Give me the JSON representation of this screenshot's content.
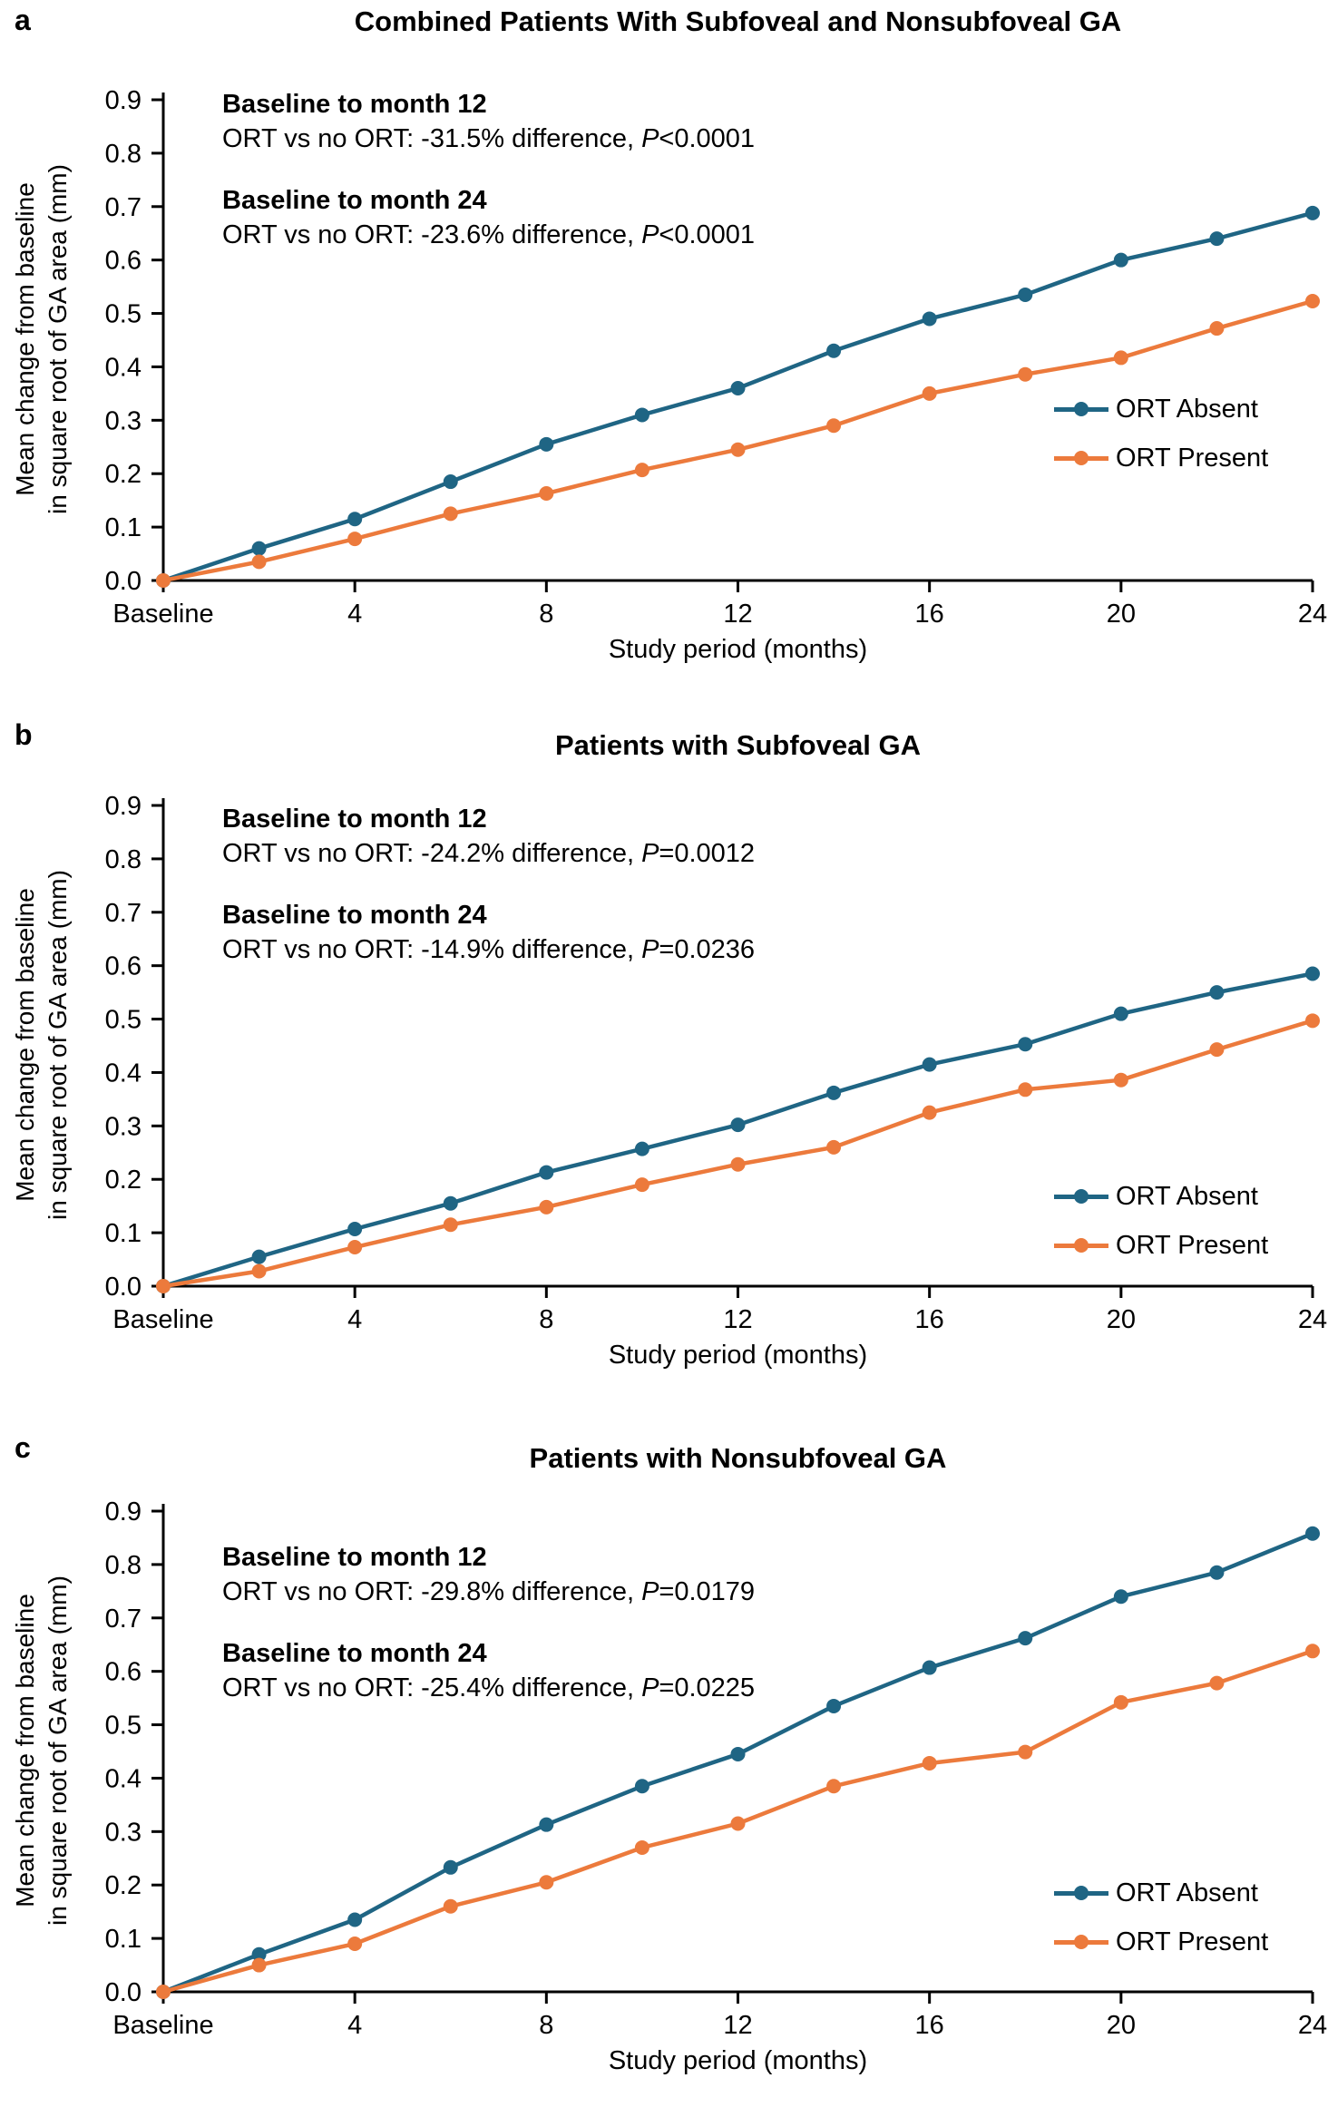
{
  "figure": {
    "ylabel_line1": "Mean change from baseline",
    "ylabel_line2": "in square root of GA area (mm)",
    "xlabel": "Study period (months)",
    "legend": {
      "absent": "ORT Absent",
      "present": "ORT Present"
    },
    "colors": {
      "absent": "#1f6584",
      "present": "#ec7a3c",
      "axis": "#000000",
      "background": "#ffffff"
    }
  },
  "chart_data": [
    {
      "type": "line",
      "panel_letter": "a",
      "title": "Combined Patients With Subfoveal and Nonsubfoveal GA",
      "xlabel": "Study period (months)",
      "ylabel": "Mean change from baseline in square root of GA area (mm)",
      "xlim": [
        0,
        24
      ],
      "ylim": [
        0,
        0.9
      ],
      "grid": false,
      "legend_position": "right-middle",
      "x": [
        0,
        2,
        4,
        6,
        8,
        10,
        12,
        14,
        16,
        18,
        20,
        22,
        24
      ],
      "xticks": [
        {
          "value": 0,
          "label": "Baseline"
        },
        {
          "value": 4,
          "label": "4"
        },
        {
          "value": 8,
          "label": "8"
        },
        {
          "value": 12,
          "label": "12"
        },
        {
          "value": 16,
          "label": "16"
        },
        {
          "value": 20,
          "label": "20"
        },
        {
          "value": 24,
          "label": "24"
        }
      ],
      "yticks": [
        {
          "value": 0.0,
          "label": "0.0"
        },
        {
          "value": 0.1,
          "label": "0.1"
        },
        {
          "value": 0.2,
          "label": "0.2"
        },
        {
          "value": 0.3,
          "label": "0.3"
        },
        {
          "value": 0.4,
          "label": "0.4"
        },
        {
          "value": 0.5,
          "label": "0.5"
        },
        {
          "value": 0.6,
          "label": "0.6"
        },
        {
          "value": 0.7,
          "label": "0.7"
        },
        {
          "value": 0.8,
          "label": "0.8"
        },
        {
          "value": 0.9,
          "label": "0.9"
        }
      ],
      "series": [
        {
          "name": "ORT Absent",
          "color_key": "absent",
          "values": [
            0,
            0.06,
            0.115,
            0.185,
            0.255,
            0.31,
            0.36,
            0.43,
            0.49,
            0.535,
            0.6,
            0.64,
            0.688
          ]
        },
        {
          "name": "ORT Present",
          "color_key": "present",
          "values": [
            0,
            0.035,
            0.078,
            0.125,
            0.163,
            0.207,
            0.245,
            0.29,
            0.35,
            0.386,
            0.417,
            0.472,
            0.523
          ]
        }
      ],
      "annotations": [
        {
          "heading": "Baseline to month 12",
          "body_prefix": "ORT vs no ORT: -31.5% difference, ",
          "p": "P",
          "p_rest": "<0.0001"
        },
        {
          "heading": "Baseline to month 24",
          "body_prefix": "ORT vs no ORT: -23.6% difference, ",
          "p": "P",
          "p_rest": "<0.0001"
        }
      ]
    },
    {
      "type": "line",
      "panel_letter": "b",
      "title": "Patients with Subfoveal GA",
      "xlabel": "Study period (months)",
      "ylabel": "Mean change from baseline in square root of GA area (mm)",
      "xlim": [
        0,
        24
      ],
      "ylim": [
        0,
        0.9
      ],
      "grid": false,
      "legend_position": "right-middle",
      "x": [
        0,
        2,
        4,
        6,
        8,
        10,
        12,
        14,
        16,
        18,
        20,
        22,
        24
      ],
      "xticks": [
        {
          "value": 0,
          "label": "Baseline"
        },
        {
          "value": 4,
          "label": "4"
        },
        {
          "value": 8,
          "label": "8"
        },
        {
          "value": 12,
          "label": "12"
        },
        {
          "value": 16,
          "label": "16"
        },
        {
          "value": 20,
          "label": "20"
        },
        {
          "value": 24,
          "label": "24"
        }
      ],
      "yticks": [
        {
          "value": 0.0,
          "label": "0.0"
        },
        {
          "value": 0.1,
          "label": "0.1"
        },
        {
          "value": 0.2,
          "label": "0.2"
        },
        {
          "value": 0.3,
          "label": "0.3"
        },
        {
          "value": 0.4,
          "label": "0.4"
        },
        {
          "value": 0.5,
          "label": "0.5"
        },
        {
          "value": 0.6,
          "label": "0.6"
        },
        {
          "value": 0.7,
          "label": "0.7"
        },
        {
          "value": 0.8,
          "label": "0.8"
        },
        {
          "value": 0.9,
          "label": "0.9"
        }
      ],
      "series": [
        {
          "name": "ORT Absent",
          "color_key": "absent",
          "values": [
            0,
            0.055,
            0.107,
            0.155,
            0.213,
            0.257,
            0.302,
            0.362,
            0.415,
            0.453,
            0.51,
            0.55,
            0.585
          ]
        },
        {
          "name": "ORT Present",
          "color_key": "present",
          "values": [
            0,
            0.028,
            0.073,
            0.115,
            0.148,
            0.19,
            0.228,
            0.26,
            0.325,
            0.368,
            0.386,
            0.443,
            0.497
          ]
        }
      ],
      "annotations": [
        {
          "heading": "Baseline to month 12",
          "body_prefix": "ORT vs no ORT: -24.2% difference, ",
          "p": "P",
          "p_rest": "=0.0012"
        },
        {
          "heading": "Baseline to month 24",
          "body_prefix": "ORT vs no ORT: -14.9% difference, ",
          "p": "P",
          "p_rest": "=0.0236"
        }
      ]
    },
    {
      "type": "line",
      "panel_letter": "c",
      "title": "Patients with Nonsubfoveal GA",
      "xlabel": "Study period (months)",
      "ylabel": "Mean change from baseline in square root of GA area (mm)",
      "xlim": [
        0,
        24
      ],
      "ylim": [
        0,
        0.9
      ],
      "grid": false,
      "legend_position": "right-middle",
      "x": [
        0,
        2,
        4,
        6,
        8,
        10,
        12,
        14,
        16,
        18,
        20,
        22,
        24
      ],
      "xticks": [
        {
          "value": 0,
          "label": "Baseline"
        },
        {
          "value": 4,
          "label": "4"
        },
        {
          "value": 8,
          "label": "8"
        },
        {
          "value": 12,
          "label": "12"
        },
        {
          "value": 16,
          "label": "16"
        },
        {
          "value": 20,
          "label": "20"
        },
        {
          "value": 24,
          "label": "24"
        }
      ],
      "yticks": [
        {
          "value": 0.0,
          "label": "0.0"
        },
        {
          "value": 0.1,
          "label": "0.1"
        },
        {
          "value": 0.2,
          "label": "0.2"
        },
        {
          "value": 0.3,
          "label": "0.3"
        },
        {
          "value": 0.4,
          "label": "0.4"
        },
        {
          "value": 0.5,
          "label": "0.5"
        },
        {
          "value": 0.6,
          "label": "0.6"
        },
        {
          "value": 0.7,
          "label": "0.7"
        },
        {
          "value": 0.8,
          "label": "0.8"
        },
        {
          "value": 0.9,
          "label": "0.9"
        }
      ],
      "series": [
        {
          "name": "ORT Absent",
          "color_key": "absent",
          "values": [
            0,
            0.07,
            0.135,
            0.233,
            0.313,
            0.385,
            0.445,
            0.535,
            0.607,
            0.662,
            0.74,
            0.785,
            0.858
          ]
        },
        {
          "name": "ORT Present",
          "color_key": "present",
          "values": [
            0,
            0.05,
            0.09,
            0.16,
            0.205,
            0.27,
            0.315,
            0.385,
            0.428,
            0.449,
            0.542,
            0.578,
            0.638
          ]
        }
      ],
      "annotations": [
        {
          "heading": "Baseline to month 12",
          "body_prefix": "ORT vs no ORT: -29.8% difference, ",
          "p": "P",
          "p_rest": "=0.0179"
        },
        {
          "heading": "Baseline to month 24",
          "body_prefix": "ORT vs no ORT: -25.4% difference, ",
          "p": "P",
          "p_rest": "=0.0225"
        }
      ]
    }
  ]
}
